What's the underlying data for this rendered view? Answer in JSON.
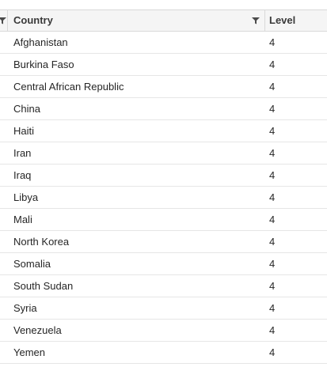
{
  "table": {
    "columns": {
      "country": "Country",
      "level": "Level"
    },
    "icons": {
      "edge_filter": "filter-icon",
      "country_filter": "filter-icon"
    },
    "rows": [
      {
        "country": "Afghanistan",
        "level": "4"
      },
      {
        "country": "Burkina Faso",
        "level": "4"
      },
      {
        "country": "Central African Republic",
        "level": "4"
      },
      {
        "country": "China",
        "level": "4"
      },
      {
        "country": "Haiti",
        "level": "4"
      },
      {
        "country": "Iran",
        "level": "4"
      },
      {
        "country": "Iraq",
        "level": "4"
      },
      {
        "country": "Libya",
        "level": "4"
      },
      {
        "country": "Mali",
        "level": "4"
      },
      {
        "country": "North Korea",
        "level": "4"
      },
      {
        "country": "Somalia",
        "level": "4"
      },
      {
        "country": "South Sudan",
        "level": "4"
      },
      {
        "country": "Syria",
        "level": "4"
      },
      {
        "country": "Venezuela",
        "level": "4"
      },
      {
        "country": "Yemen",
        "level": "4"
      }
    ]
  }
}
